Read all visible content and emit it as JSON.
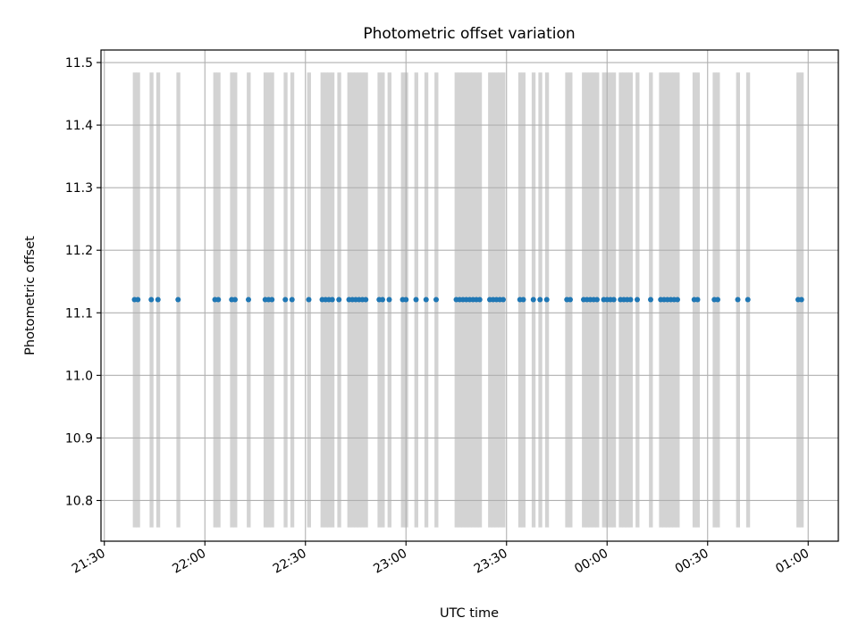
{
  "chart_data": {
    "type": "scatter",
    "title": "Photometric offset variation",
    "xlabel": "UTC time",
    "ylabel": "Photometric offset",
    "x_ticks": [
      "21:30",
      "22:00",
      "22:30",
      "23:00",
      "23:30",
      "00:00",
      "00:30",
      "01:00"
    ],
    "y_ticks": [
      "10.8",
      "10.9",
      "11.0",
      "11.1",
      "11.2",
      "11.3",
      "11.4",
      "11.5"
    ],
    "xlim_minutes_after_21_30": [
      -1,
      219
    ],
    "ylim": [
      10.735,
      11.52
    ],
    "grid": true,
    "band_range": [
      10.757,
      11.484
    ],
    "band_color": "#d3d3d3",
    "point_color": "#1f77b4",
    "y_value": 11.121,
    "observation_times": [
      "21:39",
      "21:40",
      "21:44",
      "21:46",
      "21:52",
      "22:03",
      "22:04",
      "22:08",
      "22:09",
      "22:13",
      "22:18",
      "22:19",
      "22:20",
      "22:24",
      "22:26",
      "22:31",
      "22:35",
      "22:36",
      "22:37",
      "22:38",
      "22:40",
      "22:43",
      "22:44",
      "22:45",
      "22:46",
      "22:47",
      "22:48",
      "22:52",
      "22:53",
      "22:55",
      "22:59",
      "23:00",
      "23:03",
      "23:06",
      "23:09",
      "23:15",
      "23:16",
      "23:17",
      "23:18",
      "23:19",
      "23:20",
      "23:21",
      "23:22",
      "23:25",
      "23:26",
      "23:27",
      "23:28",
      "23:29",
      "23:34",
      "23:35",
      "23:38",
      "23:40",
      "23:42",
      "23:48",
      "23:49",
      "23:53",
      "23:54",
      "23:55",
      "23:56",
      "23:57",
      "23:59",
      "00:00",
      "00:01",
      "00:02",
      "00:04",
      "00:05",
      "00:06",
      "00:07",
      "00:09",
      "00:13",
      "00:16",
      "00:17",
      "00:18",
      "00:19",
      "00:20",
      "00:21",
      "00:26",
      "00:27",
      "00:32",
      "00:33",
      "00:39",
      "00:42",
      "00:57",
      "00:58"
    ]
  }
}
